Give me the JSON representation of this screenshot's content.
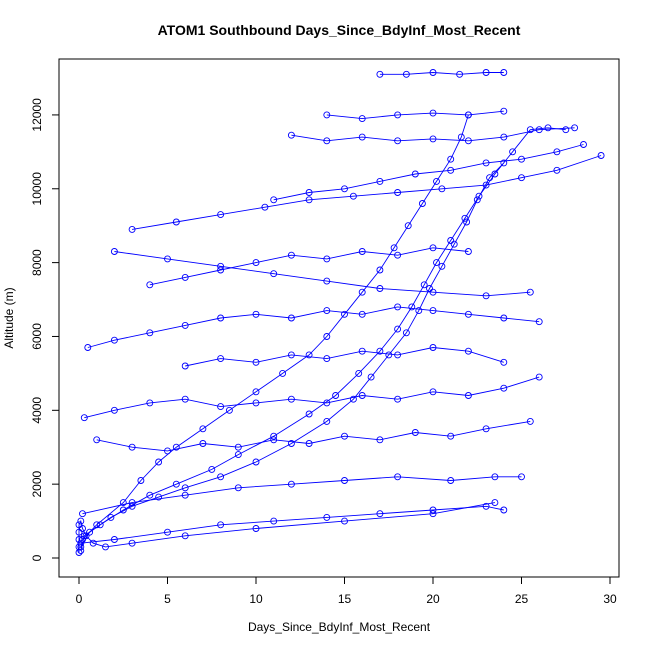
{
  "chart_data": {
    "type": "line",
    "title": "ATOM1 Southbound Days_Since_BdyInf_Most_Recent",
    "xlabel": "Days_Since_BdyInf_Most_Recent",
    "ylabel": "Altitude (m)",
    "xlim": [
      0,
      30
    ],
    "ylim": [
      0,
      13000
    ],
    "xticks": [
      0,
      5,
      10,
      15,
      20,
      25,
      30
    ],
    "xtick_labels": [
      "0",
      "5",
      "10",
      "15",
      "20",
      "25",
      "30"
    ],
    "yticks": [
      0,
      2000,
      4000,
      6000,
      8000,
      10000,
      12000
    ],
    "ytick_labels": [
      "0",
      "2000",
      "4000",
      "6000",
      "8000",
      "10000",
      "12000"
    ],
    "grid": false,
    "marker": "open-circle",
    "color": "#0000ff",
    "series": [
      {
        "values": [
          [
            0.1,
            200
          ],
          [
            0.3,
            600
          ],
          [
            1.2,
            900
          ],
          [
            2.5,
            1300
          ],
          [
            4.0,
            1700
          ],
          [
            5.5,
            2000
          ],
          [
            7.5,
            2400
          ],
          [
            9.0,
            2800
          ],
          [
            11.0,
            3300
          ],
          [
            13.0,
            3900
          ],
          [
            14.5,
            4400
          ],
          [
            15.8,
            5000
          ],
          [
            17.0,
            5600
          ],
          [
            18.0,
            6200
          ],
          [
            18.8,
            6800
          ],
          [
            19.5,
            7400
          ],
          [
            20.2,
            8000
          ],
          [
            21.0,
            8600
          ],
          [
            21.8,
            9200
          ],
          [
            22.6,
            9800
          ],
          [
            23.5,
            10400
          ],
          [
            24.5,
            11000
          ],
          [
            25.5,
            11600
          ],
          [
            26.5,
            11650
          ],
          [
            27.5,
            11600
          ]
        ]
      },
      {
        "values": [
          [
            0.1,
            300
          ],
          [
            0.6,
            700
          ],
          [
            1.8,
            1100
          ],
          [
            3.0,
            1400
          ],
          [
            4.5,
            1650
          ],
          [
            6.0,
            1900
          ],
          [
            8.0,
            2200
          ],
          [
            10.0,
            2600
          ],
          [
            12.0,
            3100
          ],
          [
            14.0,
            3700
          ],
          [
            15.5,
            4300
          ],
          [
            16.5,
            4900
          ],
          [
            17.5,
            5500
          ],
          [
            18.5,
            6100
          ],
          [
            19.2,
            6700
          ],
          [
            19.8,
            7300
          ],
          [
            20.5,
            7900
          ],
          [
            21.2,
            8500
          ],
          [
            21.9,
            9100
          ],
          [
            22.5,
            9700
          ],
          [
            23.2,
            10300
          ],
          [
            24.0,
            10700
          ]
        ]
      },
      {
        "values": [
          [
            0.2,
            500
          ],
          [
            1.0,
            900
          ],
          [
            2.5,
            1500
          ],
          [
            3.5,
            2100
          ],
          [
            4.5,
            2600
          ],
          [
            5.5,
            3000
          ],
          [
            7.0,
            3500
          ],
          [
            8.5,
            4000
          ],
          [
            10.0,
            4500
          ],
          [
            11.5,
            5000
          ],
          [
            13.0,
            5500
          ],
          [
            14.0,
            6000
          ],
          [
            15.0,
            6600
          ],
          [
            16.0,
            7200
          ],
          [
            17.0,
            7800
          ],
          [
            17.8,
            8400
          ],
          [
            18.6,
            9000
          ],
          [
            19.4,
            9600
          ],
          [
            20.2,
            10200
          ],
          [
            21.0,
            10800
          ],
          [
            21.6,
            11400
          ],
          [
            22.0,
            12000
          ]
        ]
      },
      {
        "values": [
          [
            3.0,
            8900
          ],
          [
            5.5,
            9100
          ],
          [
            8.0,
            9300
          ],
          [
            10.5,
            9500
          ],
          [
            13.0,
            9700
          ],
          [
            15.5,
            9800
          ],
          [
            18.0,
            9900
          ],
          [
            20.5,
            10000
          ],
          [
            23.0,
            10100
          ],
          [
            25.0,
            10300
          ],
          [
            27.0,
            10500
          ],
          [
            29.5,
            10900
          ]
        ]
      },
      {
        "values": [
          [
            17.0,
            13100
          ],
          [
            18.5,
            13100
          ],
          [
            20.0,
            13150
          ],
          [
            21.5,
            13100
          ],
          [
            23.0,
            13150
          ],
          [
            24.0,
            13150
          ]
        ]
      },
      {
        "values": [
          [
            12.0,
            11450
          ],
          [
            14.0,
            11300
          ],
          [
            16.0,
            11400
          ],
          [
            18.0,
            11300
          ],
          [
            20.0,
            11350
          ],
          [
            22.0,
            11300
          ],
          [
            24.0,
            11400
          ],
          [
            26.0,
            11600
          ],
          [
            28.0,
            11650
          ]
        ]
      },
      {
        "values": [
          [
            0.5,
            5700
          ],
          [
            2.0,
            5900
          ],
          [
            4.0,
            6100
          ],
          [
            6.0,
            6300
          ],
          [
            8.0,
            6500
          ],
          [
            10.0,
            6600
          ],
          [
            12.0,
            6500
          ],
          [
            14.0,
            6700
          ],
          [
            16.0,
            6600
          ],
          [
            18.0,
            6800
          ],
          [
            20.0,
            6700
          ],
          [
            22.0,
            6600
          ],
          [
            24.0,
            6500
          ],
          [
            26.0,
            6400
          ]
        ]
      },
      {
        "values": [
          [
            0.3,
            3800
          ],
          [
            2.0,
            4000
          ],
          [
            4.0,
            4200
          ],
          [
            6.0,
            4300
          ],
          [
            8.0,
            4100
          ],
          [
            10.0,
            4200
          ],
          [
            12.0,
            4300
          ],
          [
            14.0,
            4200
          ],
          [
            16.0,
            4400
          ],
          [
            18.0,
            4300
          ],
          [
            20.0,
            4500
          ],
          [
            22.0,
            4400
          ],
          [
            24.0,
            4600
          ],
          [
            26.0,
            4900
          ]
        ]
      },
      {
        "values": [
          [
            0.2,
            1200
          ],
          [
            3.0,
            1500
          ],
          [
            6.0,
            1700
          ],
          [
            9.0,
            1900
          ],
          [
            12.0,
            2000
          ],
          [
            15.0,
            2100
          ],
          [
            18.0,
            2200
          ],
          [
            21.0,
            2100
          ],
          [
            23.5,
            2200
          ],
          [
            25.0,
            2200
          ]
        ]
      },
      {
        "values": [
          [
            0.1,
            400
          ],
          [
            2.0,
            500
          ],
          [
            5.0,
            700
          ],
          [
            8.0,
            900
          ],
          [
            11.0,
            1000
          ],
          [
            14.0,
            1100
          ],
          [
            17.0,
            1200
          ],
          [
            20.0,
            1300
          ],
          [
            23.0,
            1400
          ],
          [
            24.0,
            1300
          ]
        ]
      },
      {
        "values": [
          [
            2.0,
            8300
          ],
          [
            5.0,
            8100
          ],
          [
            8.0,
            7900
          ],
          [
            11.0,
            7700
          ],
          [
            14.0,
            7500
          ],
          [
            17.0,
            7300
          ],
          [
            20.0,
            7200
          ],
          [
            23.0,
            7100
          ],
          [
            25.5,
            7200
          ]
        ]
      },
      {
        "values": [
          [
            11.0,
            9700
          ],
          [
            13.0,
            9900
          ],
          [
            15.0,
            10000
          ],
          [
            17.0,
            10200
          ],
          [
            19.0,
            10400
          ],
          [
            21.0,
            10500
          ],
          [
            23.0,
            10700
          ],
          [
            25.0,
            10800
          ],
          [
            27.0,
            11000
          ],
          [
            28.5,
            11200
          ]
        ]
      },
      {
        "values": [
          [
            14.0,
            12000
          ],
          [
            16.0,
            11900
          ],
          [
            18.0,
            12000
          ],
          [
            20.0,
            12050
          ],
          [
            22.0,
            12000
          ],
          [
            24.0,
            12100
          ]
        ]
      },
      {
        "values": [
          [
            1.0,
            3200
          ],
          [
            3.0,
            3000
          ],
          [
            5.0,
            2900
          ],
          [
            7.0,
            3100
          ],
          [
            9.0,
            3000
          ],
          [
            11.0,
            3200
          ],
          [
            13.0,
            3100
          ],
          [
            15.0,
            3300
          ],
          [
            17.0,
            3200
          ],
          [
            19.0,
            3400
          ],
          [
            21.0,
            3300
          ],
          [
            23.0,
            3500
          ],
          [
            25.5,
            3700
          ]
        ]
      },
      {
        "values": [
          [
            6.0,
            5200
          ],
          [
            8.0,
            5400
          ],
          [
            10.0,
            5300
          ],
          [
            12.0,
            5500
          ],
          [
            14.0,
            5400
          ],
          [
            16.0,
            5600
          ],
          [
            18.0,
            5500
          ],
          [
            20.0,
            5700
          ],
          [
            22.0,
            5600
          ],
          [
            24.0,
            5300
          ]
        ]
      },
      {
        "values": [
          [
            4.0,
            7400
          ],
          [
            6.0,
            7600
          ],
          [
            8.0,
            7800
          ],
          [
            10.0,
            8000
          ],
          [
            12.0,
            8200
          ],
          [
            14.0,
            8100
          ],
          [
            16.0,
            8300
          ],
          [
            18.0,
            8200
          ],
          [
            20.0,
            8400
          ],
          [
            22.0,
            8300
          ]
        ]
      },
      {
        "values": [
          [
            0.0,
            150
          ],
          [
            0.0,
            300
          ],
          [
            0.0,
            500
          ],
          [
            0.0,
            700
          ],
          [
            0.0,
            900
          ],
          [
            0.1,
            1000
          ],
          [
            0.2,
            800
          ],
          [
            0.4,
            600
          ],
          [
            0.8,
            400
          ],
          [
            1.5,
            300
          ],
          [
            3.0,
            400
          ],
          [
            6.0,
            600
          ],
          [
            10.0,
            800
          ],
          [
            15.0,
            1000
          ],
          [
            20.0,
            1200
          ],
          [
            23.5,
            1500
          ]
        ]
      }
    ]
  }
}
